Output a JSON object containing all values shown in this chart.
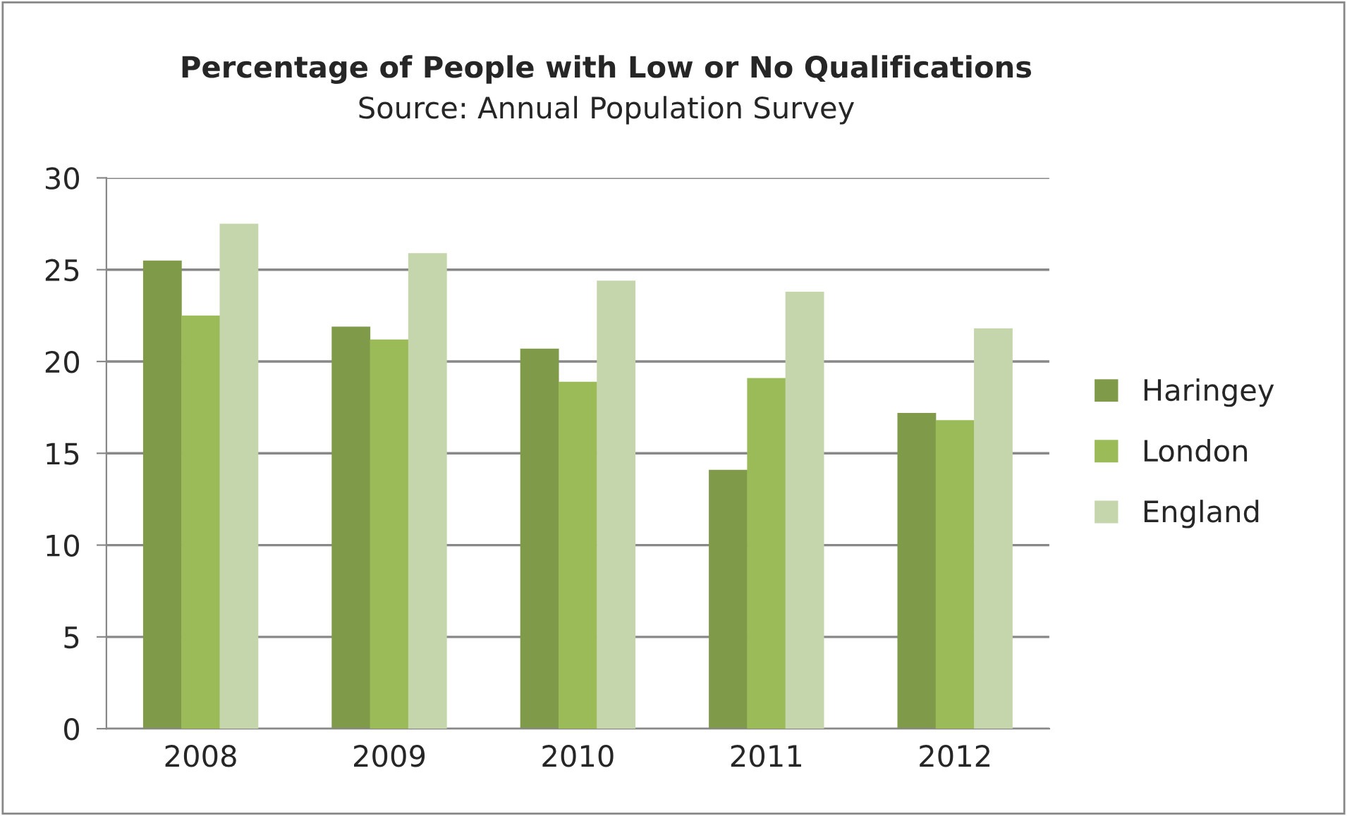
{
  "chart_data": {
    "type": "bar",
    "title": "Percentage of People with Low or No Qualifications",
    "subtitle": "Source: Annual Population Survey",
    "categories": [
      "2008",
      "2009",
      "2010",
      "2011",
      "2012"
    ],
    "series": [
      {
        "name": "Haringey",
        "color": "#7f9b4a",
        "values": [
          25.5,
          21.9,
          20.7,
          14.1,
          17.2
        ]
      },
      {
        "name": "London",
        "color": "#9bbb59",
        "values": [
          22.5,
          21.2,
          18.9,
          19.1,
          16.8
        ]
      },
      {
        "name": "England",
        "color": "#c6d6ac",
        "values": [
          27.5,
          25.9,
          24.4,
          23.8,
          21.8
        ]
      }
    ],
    "ylim": [
      0,
      30
    ],
    "yticks": [
      0,
      5,
      10,
      15,
      20,
      25,
      30
    ],
    "grid": "y",
    "legend": "right"
  }
}
